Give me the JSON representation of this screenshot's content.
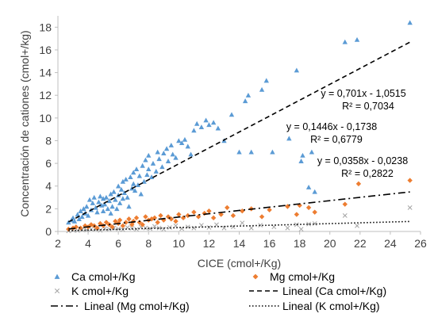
{
  "chart_data": {
    "type": "scatter",
    "title": "",
    "xlabel": "CICE (cmol+/Kg)",
    "ylabel": "Concentración de cationes (cmol+/kg)",
    "xlim": [
      2,
      26
    ],
    "ylim": [
      0,
      19
    ],
    "x_ticks": [
      2,
      4,
      6,
      8,
      10,
      12,
      14,
      16,
      18,
      20,
      22,
      24,
      26
    ],
    "y_ticks": [
      0,
      2,
      4,
      6,
      8,
      10,
      12,
      14,
      16,
      18
    ],
    "grid": false,
    "legend_position": "bottom",
    "series": [
      {
        "name": "Ca cmol+/Kg",
        "marker": "triangle",
        "color": "#5B9BD5",
        "points": [
          [
            2.7,
            0.8
          ],
          [
            2.9,
            1.0
          ],
          [
            3.0,
            1.2
          ],
          [
            3.1,
            0.9
          ],
          [
            3.3,
            1.5
          ],
          [
            3.4,
            1.1
          ],
          [
            3.5,
            1.8
          ],
          [
            3.6,
            1.3
          ],
          [
            3.7,
            2.0
          ],
          [
            3.8,
            1.6
          ],
          [
            3.9,
            2.2
          ],
          [
            4.0,
            1.4
          ],
          [
            4.1,
            2.8
          ],
          [
            4.2,
            1.9
          ],
          [
            4.3,
            2.5
          ],
          [
            4.4,
            3.0
          ],
          [
            4.5,
            2.1
          ],
          [
            4.6,
            1.7
          ],
          [
            4.7,
            2.6
          ],
          [
            4.8,
            3.1
          ],
          [
            4.9,
            2.3
          ],
          [
            5.0,
            2.9
          ],
          [
            5.0,
            1.8
          ],
          [
            5.1,
            2.4
          ],
          [
            5.2,
            3.0
          ],
          [
            5.3,
            2.0
          ],
          [
            5.4,
            2.7
          ],
          [
            5.5,
            3.3
          ],
          [
            5.5,
            1.6
          ],
          [
            5.6,
            2.2
          ],
          [
            5.7,
            3.5
          ],
          [
            5.8,
            2.8
          ],
          [
            5.9,
            2.0
          ],
          [
            6.0,
            3.2
          ],
          [
            6.0,
            4.0
          ],
          [
            6.1,
            2.5
          ],
          [
            6.2,
            3.7
          ],
          [
            6.3,
            4.4
          ],
          [
            6.3,
            2.9
          ],
          [
            6.4,
            3.4
          ],
          [
            6.5,
            4.6
          ],
          [
            6.6,
            3.0
          ],
          [
            6.7,
            2.2
          ],
          [
            6.8,
            4.8
          ],
          [
            6.9,
            3.8
          ],
          [
            7.0,
            4.2
          ],
          [
            7.0,
            5.2
          ],
          [
            7.1,
            3.6
          ],
          [
            7.2,
            5.5
          ],
          [
            7.3,
            4.1
          ],
          [
            7.4,
            4.9
          ],
          [
            7.5,
            3.3
          ],
          [
            7.6,
            5.8
          ],
          [
            7.7,
            4.4
          ],
          [
            7.8,
            6.3
          ],
          [
            7.9,
            5.0
          ],
          [
            8.0,
            5.5
          ],
          [
            8.0,
            6.7
          ],
          [
            8.2,
            4.8
          ],
          [
            8.3,
            6.0
          ],
          [
            8.5,
            5.3
          ],
          [
            8.6,
            7.0
          ],
          [
            8.7,
            6.4
          ],
          [
            8.9,
            5.7
          ],
          [
            9.0,
            6.9
          ],
          [
            9.2,
            7.3
          ],
          [
            9.3,
            6.2
          ],
          [
            9.5,
            7.6
          ],
          [
            9.6,
            6.8
          ],
          [
            9.8,
            6.5
          ],
          [
            10.0,
            8.0
          ],
          [
            10.2,
            7.8
          ],
          [
            10.4,
            8.1
          ],
          [
            10.6,
            7.5
          ],
          [
            10.8,
            6.8
          ],
          [
            11.0,
            8.9
          ],
          [
            11.2,
            9.5
          ],
          [
            11.5,
            9.2
          ],
          [
            11.8,
            9.8
          ],
          [
            12.0,
            9.4
          ],
          [
            12.3,
            9.6
          ],
          [
            12.6,
            9.1
          ],
          [
            13.0,
            8.0
          ],
          [
            13.5,
            10.3
          ],
          [
            14.0,
            7.0
          ],
          [
            14.4,
            11.5
          ],
          [
            14.6,
            12.0
          ],
          [
            14.8,
            7.0
          ],
          [
            15.5,
            12.5
          ],
          [
            15.8,
            13.3
          ],
          [
            16.2,
            7.0
          ],
          [
            17.3,
            8.2
          ],
          [
            17.8,
            14.2
          ],
          [
            18.1,
            6.2
          ],
          [
            18.2,
            6.7
          ],
          [
            18.6,
            3.9
          ],
          [
            18.8,
            7.0
          ],
          [
            19.0,
            3.5
          ],
          [
            21.0,
            16.7
          ],
          [
            21.8,
            16.9
          ],
          [
            25.3,
            18.4
          ]
        ]
      },
      {
        "name": "Mg cmol+/Kg",
        "marker": "diamond",
        "color": "#ED7D31",
        "points": [
          [
            2.7,
            0.2
          ],
          [
            3.0,
            0.3
          ],
          [
            3.2,
            0.4
          ],
          [
            3.5,
            0.3
          ],
          [
            3.8,
            0.5
          ],
          [
            4.0,
            0.4
          ],
          [
            4.2,
            0.6
          ],
          [
            4.4,
            0.5
          ],
          [
            4.6,
            0.3
          ],
          [
            4.8,
            0.7
          ],
          [
            5.0,
            0.5
          ],
          [
            5.2,
            0.8
          ],
          [
            5.4,
            0.6
          ],
          [
            5.6,
            0.4
          ],
          [
            5.8,
            0.9
          ],
          [
            6.0,
            0.7
          ],
          [
            6.1,
            1.0
          ],
          [
            6.3,
            0.5
          ],
          [
            6.5,
            0.8
          ],
          [
            6.7,
            1.1
          ],
          [
            6.9,
            0.6
          ],
          [
            7.0,
            0.9
          ],
          [
            7.2,
            1.2
          ],
          [
            7.4,
            0.8
          ],
          [
            7.6,
            0.6
          ],
          [
            7.8,
            1.3
          ],
          [
            8.0,
            1.0
          ],
          [
            8.2,
            1.1
          ],
          [
            8.4,
            1.2
          ],
          [
            8.6,
            0.8
          ],
          [
            8.8,
            1.4
          ],
          [
            9.0,
            1.0
          ],
          [
            9.3,
            1.3
          ],
          [
            9.5,
            1.1
          ],
          [
            9.8,
            0.9
          ],
          [
            10.0,
            1.5
          ],
          [
            10.3,
            1.2
          ],
          [
            10.6,
            1.4
          ],
          [
            11.0,
            1.7
          ],
          [
            11.3,
            1.3
          ],
          [
            11.7,
            1.6
          ],
          [
            12.0,
            1.8
          ],
          [
            12.3,
            1.2
          ],
          [
            12.8,
            1.5
          ],
          [
            13.2,
            2.1
          ],
          [
            13.6,
            1.4
          ],
          [
            14.2,
            1.8
          ],
          [
            14.8,
            2.0
          ],
          [
            15.5,
            1.3
          ],
          [
            16.0,
            1.9
          ],
          [
            17.2,
            2.2
          ],
          [
            17.8,
            1.5
          ],
          [
            18.0,
            2.3
          ],
          [
            18.6,
            2.1
          ],
          [
            19.0,
            1.7
          ],
          [
            21.0,
            2.4
          ],
          [
            21.9,
            4.2
          ],
          [
            25.3,
            4.5
          ]
        ]
      },
      {
        "name": "K cmol+/Kg",
        "marker": "x",
        "color": "#A5A5A5",
        "points": [
          [
            2.7,
            0.05
          ],
          [
            3.0,
            0.1
          ],
          [
            3.3,
            0.08
          ],
          [
            3.6,
            0.15
          ],
          [
            3.9,
            0.12
          ],
          [
            4.2,
            0.2
          ],
          [
            4.5,
            0.18
          ],
          [
            4.8,
            0.1
          ],
          [
            5.1,
            0.25
          ],
          [
            5.4,
            0.2
          ],
          [
            5.7,
            0.3
          ],
          [
            6.0,
            0.22
          ],
          [
            6.3,
            0.15
          ],
          [
            6.6,
            0.35
          ],
          [
            6.9,
            0.28
          ],
          [
            7.2,
            0.2
          ],
          [
            7.5,
            0.4
          ],
          [
            7.8,
            0.3
          ],
          [
            8.1,
            0.25
          ],
          [
            8.4,
            0.45
          ],
          [
            8.7,
            0.3
          ],
          [
            9.0,
            0.2
          ],
          [
            9.4,
            0.35
          ],
          [
            9.8,
            0.5
          ],
          [
            10.2,
            0.25
          ],
          [
            10.6,
            0.4
          ],
          [
            11.0,
            0.3
          ],
          [
            11.5,
            0.55
          ],
          [
            12.0,
            0.35
          ],
          [
            12.5,
            0.6
          ],
          [
            13.0,
            0.3
          ],
          [
            13.6,
            0.4
          ],
          [
            14.2,
            0.75
          ],
          [
            14.8,
            0.3
          ],
          [
            15.4,
            0.55
          ],
          [
            16.3,
            0.4
          ],
          [
            17.2,
            0.3
          ],
          [
            17.8,
            0.6
          ],
          [
            18.1,
            0.2
          ],
          [
            18.6,
            0.65
          ],
          [
            19.0,
            0.7
          ],
          [
            21.0,
            1.4
          ],
          [
            21.8,
            0.5
          ],
          [
            25.3,
            2.1
          ]
        ]
      }
    ],
    "trendlines": [
      {
        "name": "Lineal (Ca cmol+/Kg)",
        "slope": 0.701,
        "intercept": -1.0515,
        "style": "dashed",
        "x_range": [
          2.7,
          25.3
        ],
        "equation": "y = 0,701x - 1,0515",
        "r2": "R² = 0,7034"
      },
      {
        "name": "Lineal (Mg cmol+/Kg)",
        "slope": 0.1446,
        "intercept": -0.1738,
        "style": "dashdot",
        "x_range": [
          2.7,
          25.3
        ],
        "equation": "y = 0,1446x - 0,1738",
        "r2": "R² = 0,6779"
      },
      {
        "name": "Lineal (K cmol+/Kg)",
        "slope": 0.0358,
        "intercept": -0.0238,
        "style": "dotted",
        "x_range": [
          2.7,
          25.3
        ],
        "equation": "y = 0,0358x - 0,0238",
        "r2": "R² = 0,2822"
      }
    ],
    "legend": [
      {
        "label": "Ca cmol+/Kg",
        "kind": "triangle",
        "color": "#5B9BD5"
      },
      {
        "label": "Mg cmol+/Kg",
        "kind": "diamond",
        "color": "#ED7D31"
      },
      {
        "label": "K cmol+/Kg",
        "kind": "x",
        "color": "#A5A5A5"
      },
      {
        "label": "Lineal (Ca cmol+/Kg)",
        "kind": "dashed",
        "color": "#000000"
      },
      {
        "label": "Lineal (Mg cmol+/Kg)",
        "kind": "dashdot",
        "color": "#000000"
      },
      {
        "label": "Lineal (K cmol+/Kg)",
        "kind": "dotted",
        "color": "#000000"
      }
    ]
  }
}
